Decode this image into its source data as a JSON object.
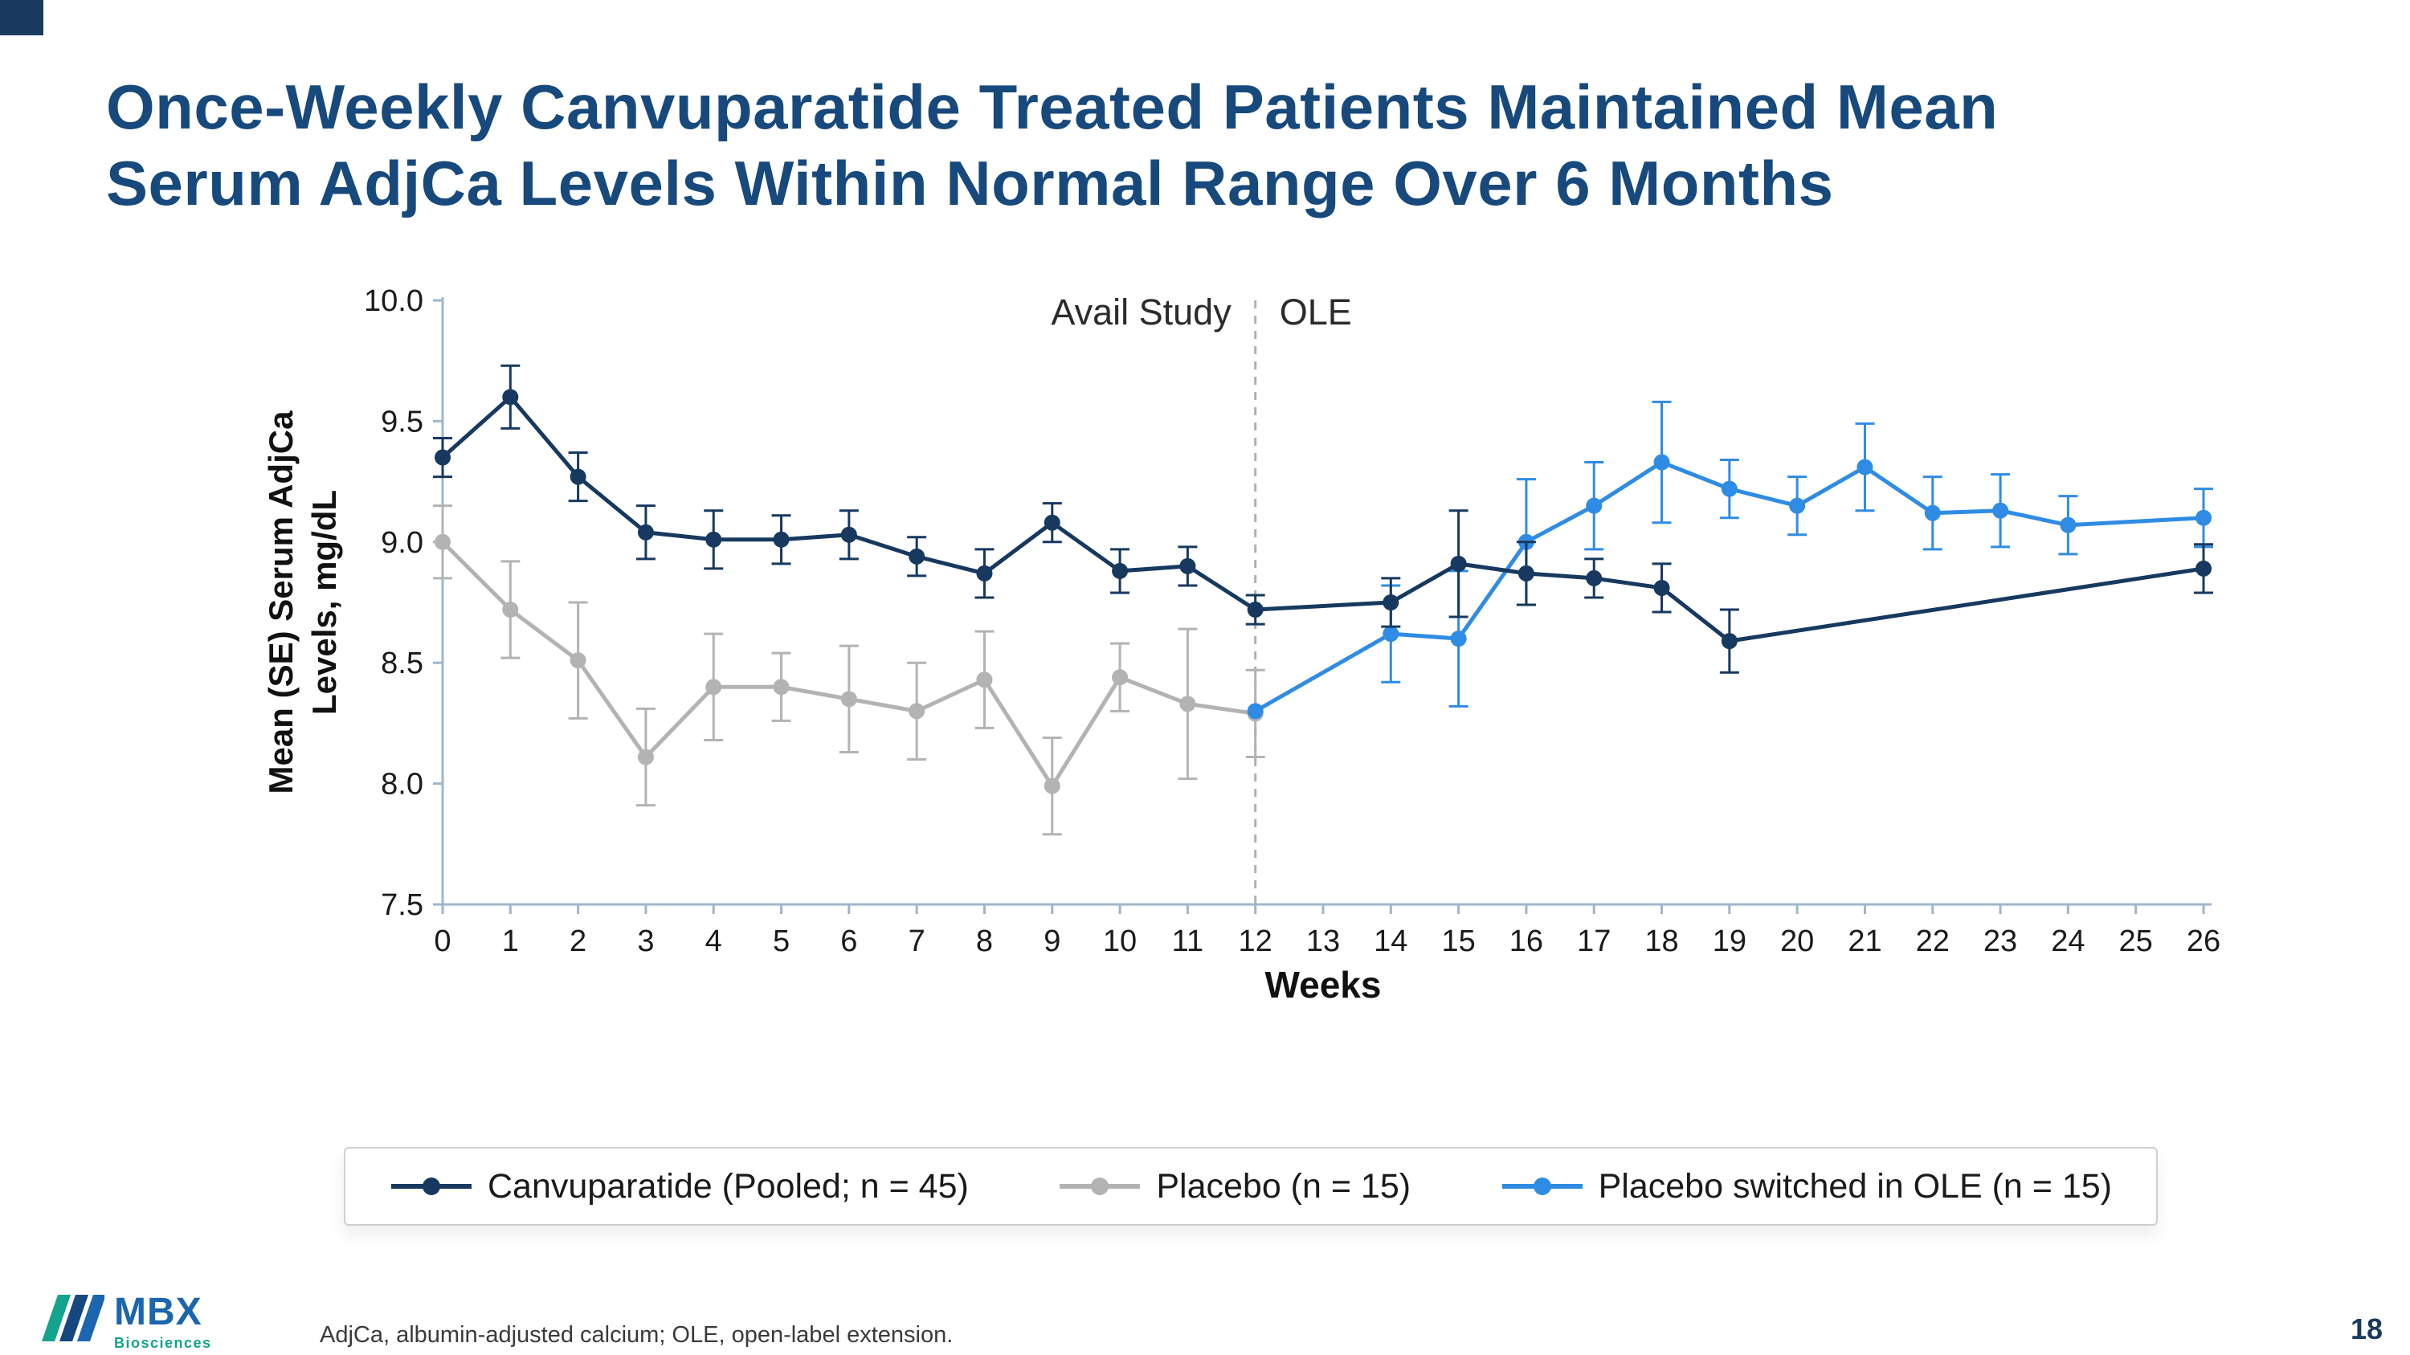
{
  "slide": {
    "title_lines": [
      "Once-Weekly Canvuparatide Treated Patients Maintained Mean",
      "Serum AdjCa Levels Within Normal Range Over 6 Months"
    ],
    "page_number": "18"
  },
  "footer": {
    "footnote": "AdjCa, albumin-adjusted calcium; OLE, open-label extension.",
    "logo_text": "MBX",
    "logo_subtext": "Biosciences"
  },
  "colors": {
    "title": "#17497c",
    "accent_square": "#1b3a5f",
    "axis": "#9fb6c9",
    "divider": "#b0b0b0",
    "page_number": "#1b3a5f",
    "logo_blue": "#1b66ae",
    "logo_teal": "#14a38c",
    "logo_bar1": "#14a38c",
    "logo_bar2": "#16477e",
    "logo_bar3": "#1b66ae"
  },
  "chart_data": {
    "type": "line",
    "title": "",
    "xlabel": "Weeks",
    "ylabel_lines": [
      "Mean (SE) Serum AdjCa",
      "Levels, mg/dL"
    ],
    "xlim": [
      0,
      26
    ],
    "ylim": [
      7.5,
      10.0
    ],
    "xticks": [
      0,
      1,
      2,
      3,
      4,
      5,
      6,
      7,
      8,
      9,
      10,
      11,
      12,
      13,
      14,
      15,
      16,
      17,
      18,
      19,
      20,
      21,
      22,
      23,
      24,
      25,
      26
    ],
    "yticks": [
      7.5,
      8.0,
      8.5,
      9.0,
      9.5,
      10.0
    ],
    "divider_week": 12,
    "annotations": {
      "left": "Avail Study",
      "right": "OLE"
    },
    "draw_order": [
      1,
      2,
      0
    ],
    "series": [
      {
        "name": "canvuparatide",
        "label": "Canvuparatide (Pooled; n = 45)",
        "color": "#17395f",
        "weeks": [
          0,
          1,
          2,
          3,
          4,
          5,
          6,
          7,
          8,
          9,
          10,
          11,
          12,
          14,
          15,
          16,
          17,
          18,
          19,
          26
        ],
        "values": [
          9.35,
          9.6,
          9.27,
          9.04,
          9.01,
          9.01,
          9.03,
          8.94,
          8.87,
          9.08,
          8.88,
          8.9,
          8.72,
          8.75,
          8.91,
          8.87,
          8.85,
          8.81,
          8.59,
          8.89
        ],
        "se": [
          0.08,
          0.13,
          0.1,
          0.11,
          0.12,
          0.1,
          0.1,
          0.08,
          0.1,
          0.08,
          0.09,
          0.08,
          0.06,
          0.1,
          0.22,
          0.13,
          0.08,
          0.1,
          0.13,
          0.1
        ]
      },
      {
        "name": "placebo",
        "label": "Placebo (n = 15)",
        "color": "#b3b3b3",
        "weeks": [
          0,
          1,
          2,
          3,
          4,
          5,
          6,
          7,
          8,
          9,
          10,
          11,
          12
        ],
        "values": [
          9.0,
          8.72,
          8.51,
          8.11,
          8.4,
          8.4,
          8.35,
          8.3,
          8.43,
          7.99,
          8.44,
          8.33,
          8.29
        ],
        "se": [
          0.15,
          0.2,
          0.24,
          0.2,
          0.22,
          0.14,
          0.22,
          0.2,
          0.2,
          0.2,
          0.14,
          0.31,
          0.18
        ]
      },
      {
        "name": "placebo-switched",
        "label": "Placebo switched in OLE (n = 15)",
        "color": "#2f8ce4",
        "weeks": [
          12,
          14,
          15,
          16,
          17,
          18,
          19,
          20,
          21,
          22,
          23,
          24,
          26
        ],
        "values": [
          8.3,
          8.62,
          8.6,
          9.0,
          9.15,
          9.33,
          9.22,
          9.15,
          9.31,
          9.12,
          9.13,
          9.07,
          9.1
        ],
        "se": [
          0,
          0.2,
          0.28,
          0.26,
          0.18,
          0.25,
          0.12,
          0.12,
          0.18,
          0.15,
          0.15,
          0.12,
          0.12
        ]
      }
    ]
  }
}
